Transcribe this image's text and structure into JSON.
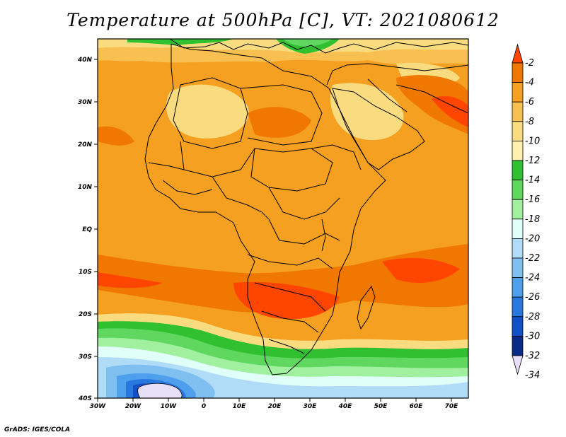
{
  "title": "Temperature at 500hPa [C], VT: 2021080612",
  "footer": "GrADS: IGES/COLA",
  "map": {
    "lon_ticks": [
      "30W",
      "20W",
      "10W",
      "0",
      "10E",
      "20E",
      "30E",
      "40E",
      "50E",
      "60E",
      "70E"
    ],
    "lat_ticks": [
      "40N",
      "30N",
      "20N",
      "10N",
      "EQ",
      "10S",
      "20S",
      "30S",
      "40S"
    ],
    "region": "Africa"
  },
  "colorbar": {
    "labels": [
      "-2",
      "-4",
      "-6",
      "-8",
      "-10",
      "-12",
      "-14",
      "-16",
      "-18",
      "-20",
      "-22",
      "-24",
      "-26",
      "-28",
      "-30",
      "-32",
      "-34"
    ],
    "colors": [
      "#ff4500",
      "#f07800",
      "#f5a020",
      "#f8c050",
      "#fadc80",
      "#fff0b0",
      "#30c030",
      "#60d860",
      "#a0f0a0",
      "#e0fff8",
      "#b0dcf8",
      "#80c0f0",
      "#4ea0ec",
      "#2878e0",
      "#1050c8",
      "#0a2a88",
      "#e8e0f8"
    ]
  }
}
